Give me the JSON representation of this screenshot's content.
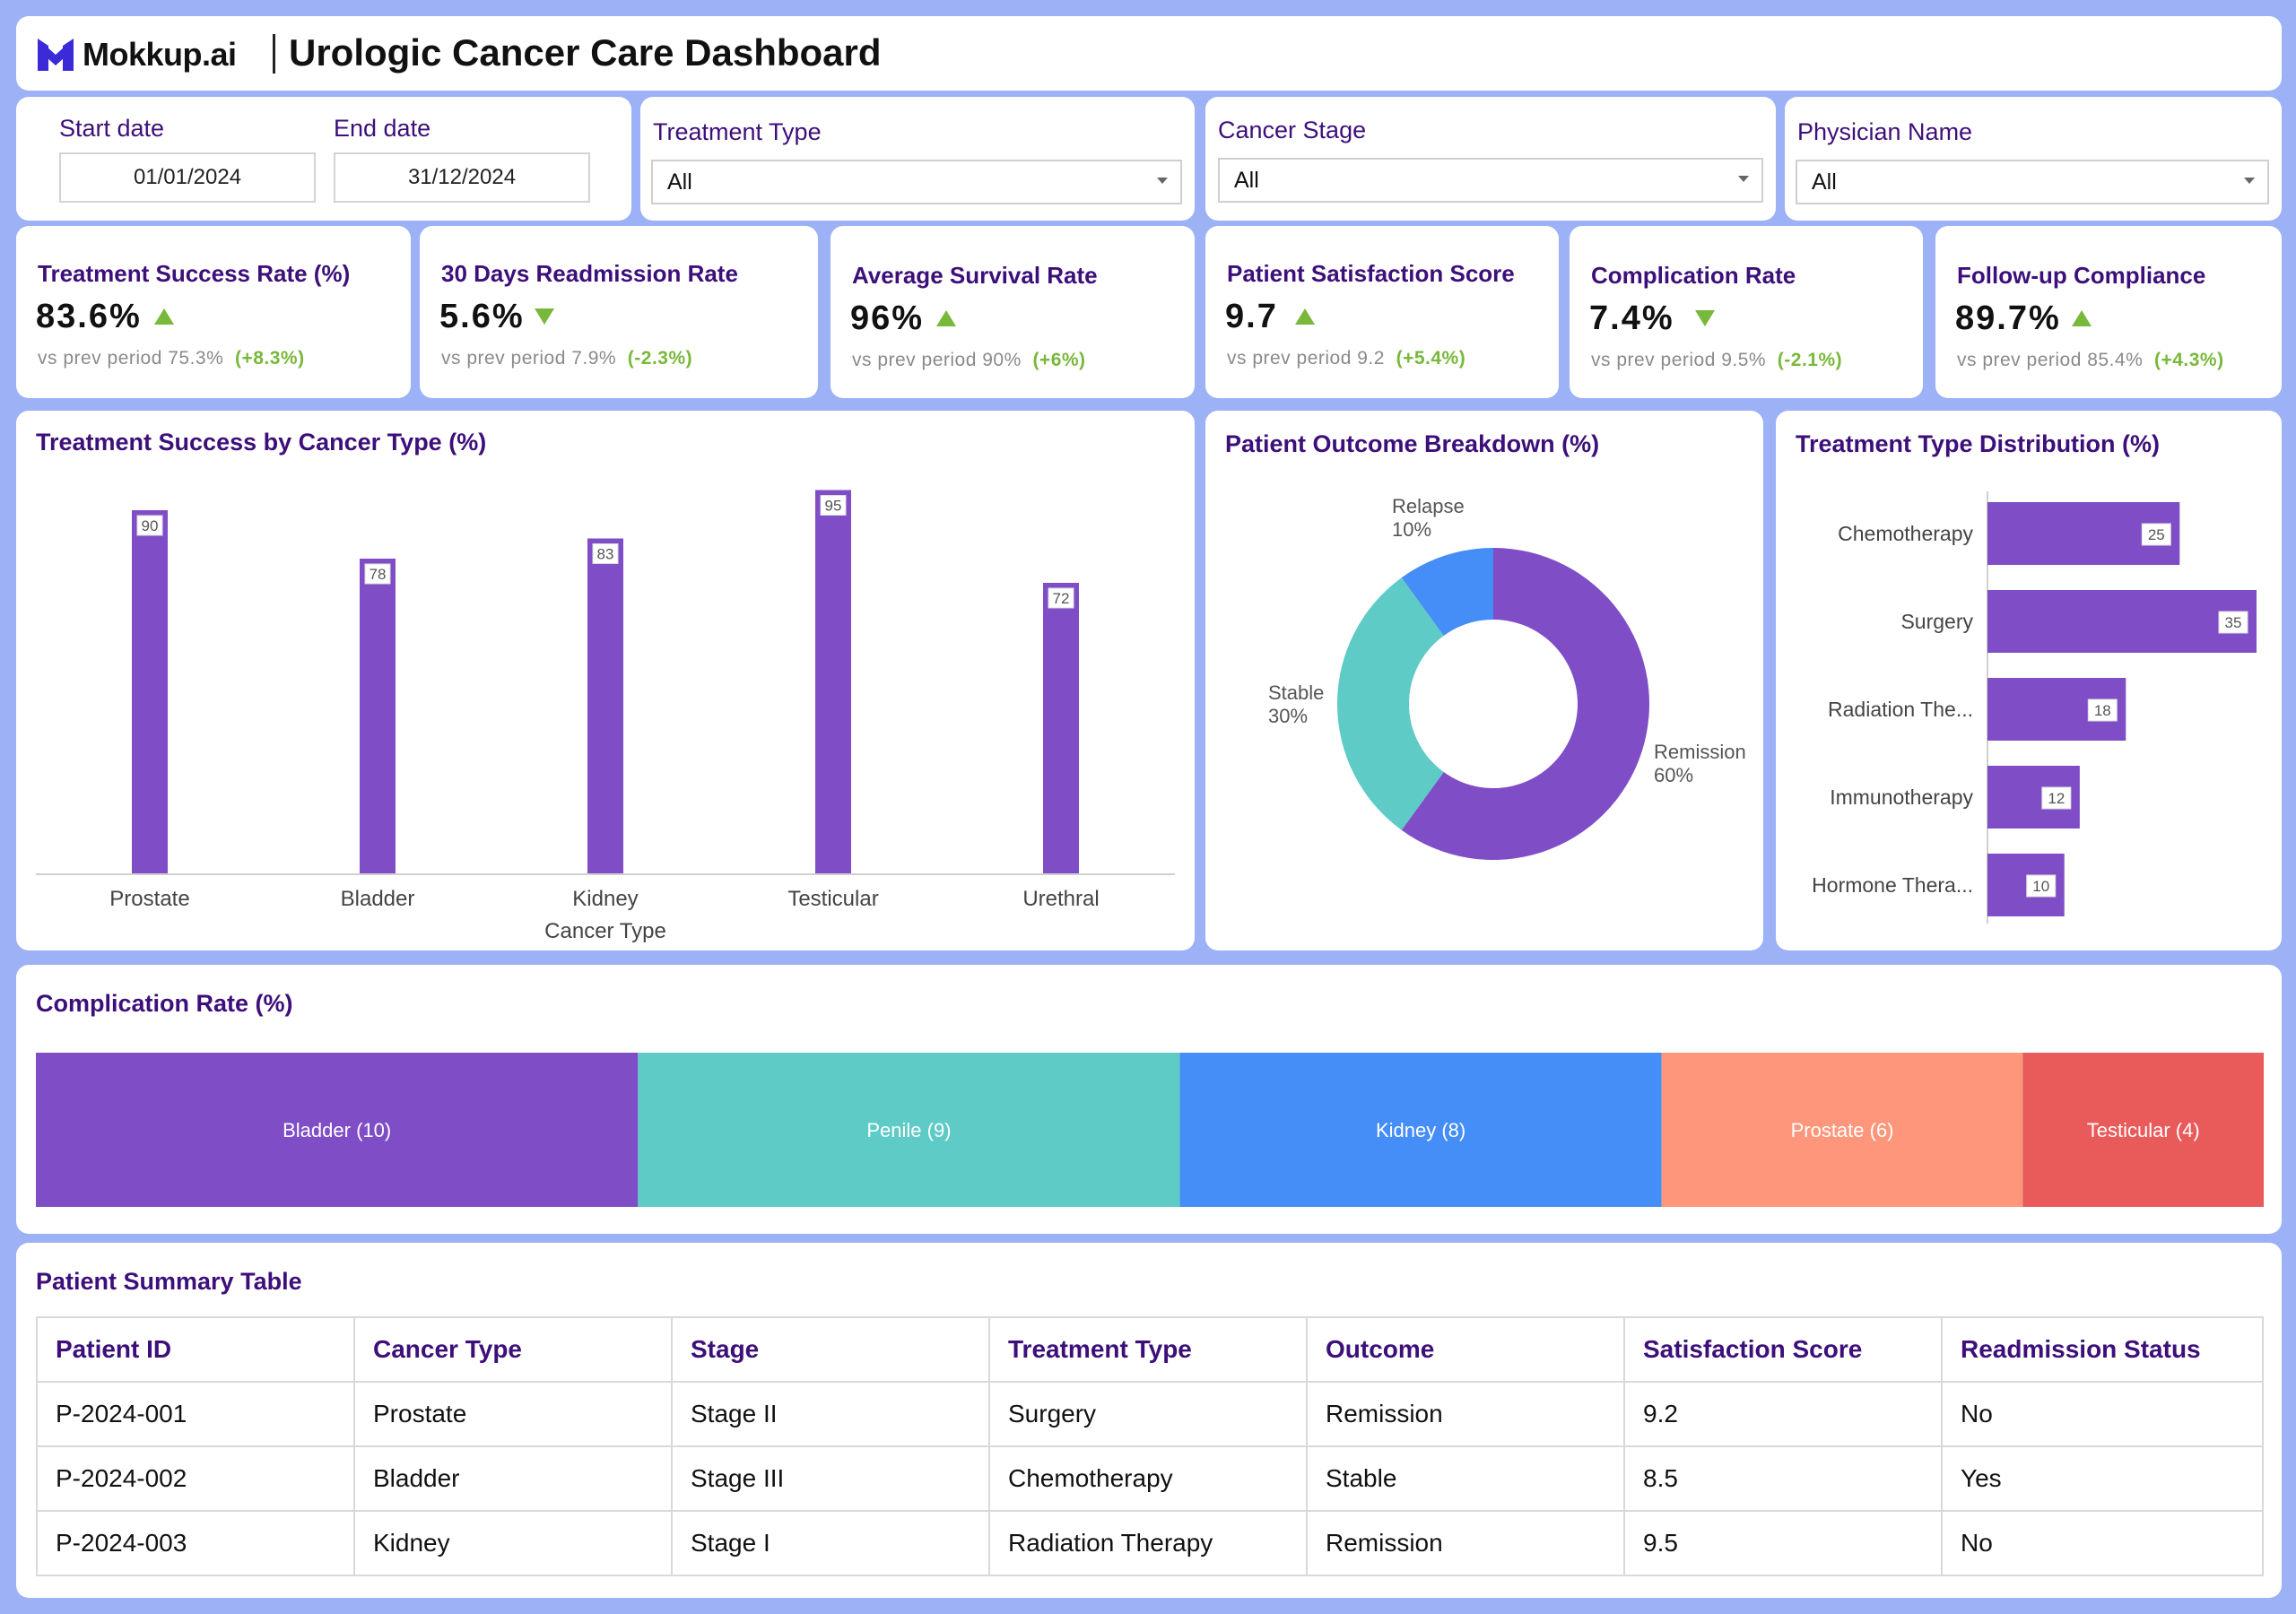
{
  "header": {
    "logo_text": "Mokkup.ai",
    "title": "Urologic Cancer Care Dashboard"
  },
  "filters": {
    "start_label": "Start date",
    "start_value": "01/01/2024",
    "end_label": "End date",
    "end_value": "31/12/2024",
    "treatment_label": "Treatment Type",
    "treatment_value": "All",
    "stage_label": "Cancer Stage",
    "stage_value": "All",
    "physician_label": "Physician Name",
    "physician_value": "All"
  },
  "kpis": [
    {
      "title": "Treatment Success Rate (%)",
      "value": "83.6%",
      "trend": "up",
      "prev": "vs prev period 75.3%",
      "change": "(+8.3%)"
    },
    {
      "title": "30 Days Readmission Rate",
      "value": "5.6%",
      "trend": "down",
      "prev": "vs prev period 7.9%",
      "change": "(-2.3%)"
    },
    {
      "title": "Average Survival Rate",
      "value": "96%",
      "trend": "up",
      "prev": "vs prev period 90%",
      "change": "(+6%)"
    },
    {
      "title": "Patient Satisfaction Score",
      "value": "9.7",
      "trend": "up",
      "prev": "vs prev period 9.2",
      "change": "(+5.4%)"
    },
    {
      "title": "Complication Rate",
      "value": "7.4%",
      "trend": "down",
      "prev": "vs prev period 9.5%",
      "change": "(-2.1%)"
    },
    {
      "title": "Follow-up Compliance",
      "value": "89.7%",
      "trend": "up",
      "prev": "vs prev period 85.4%",
      "change": "(+4.3%)"
    }
  ],
  "colors": {
    "accent": "#3d0f7a",
    "purple": "#7f4ec7",
    "teal": "#5ecbc6",
    "blue": "#458df7",
    "salmon": "#fd967b",
    "red": "#e95a5a",
    "green": "#78b83a",
    "background": "#9db1f7"
  },
  "chart_data": [
    {
      "type": "bar",
      "title": "Treatment Success by Cancer Type (%)",
      "xlabel": "Cancer Type",
      "ylabel": "",
      "categories": [
        "Prostate",
        "Bladder",
        "Kidney",
        "Testicular",
        "Urethral"
      ],
      "values": [
        90,
        78,
        83,
        95,
        72
      ],
      "ylim": [
        0,
        100
      ],
      "grid": false
    },
    {
      "type": "pie",
      "title": "Patient Outcome Breakdown (%)",
      "labels": [
        "Remission",
        "Stable",
        "Relapse"
      ],
      "values": [
        60,
        30,
        10
      ],
      "value_labels": [
        "60%",
        "30%",
        "10%"
      ],
      "colors": [
        "#7f4ec7",
        "#5ecbc6",
        "#458df7"
      ]
    },
    {
      "type": "bar",
      "orientation": "horizontal",
      "title": "Treatment Type Distribution (%)",
      "categories": [
        "Chemotherapy",
        "Surgery",
        "Radiation The...",
        "Immunotherapy",
        "Hormone Thera..."
      ],
      "values": [
        25,
        35,
        18,
        12,
        10
      ],
      "xlim": [
        0,
        35
      ]
    },
    {
      "type": "bar",
      "orientation": "stacked-horizontal",
      "title": "Complication Rate (%)",
      "categories": [
        "Bladder",
        "Penile",
        "Kidney",
        "Prostate",
        "Testicular"
      ],
      "values": [
        10,
        9,
        8,
        6,
        4
      ],
      "labels": [
        "Bladder (10)",
        "Penile (9)",
        "Kidney (8)",
        "Prostate (6)",
        "Testicular (4)"
      ],
      "colors": [
        "#7f4ec7",
        "#5ecbc6",
        "#458df7",
        "#fd967b",
        "#e95a5a"
      ]
    }
  ],
  "table": {
    "title": "Patient Summary Table",
    "columns": [
      "Patient ID",
      "Cancer Type",
      "Stage",
      "Treatment Type",
      "Outcome",
      "Satisfaction Score",
      "Readmission Status"
    ],
    "rows": [
      [
        "P-2024-001",
        "Prostate",
        "Stage II",
        "Surgery",
        "Remission",
        "9.2",
        "No"
      ],
      [
        "P-2024-002",
        "Bladder",
        "Stage III",
        "Chemotherapy",
        "Stable",
        "8.5",
        "Yes"
      ],
      [
        "P-2024-003",
        "Kidney",
        "Stage I",
        "Radiation Therapy",
        "Remission",
        "9.5",
        "No"
      ]
    ]
  }
}
